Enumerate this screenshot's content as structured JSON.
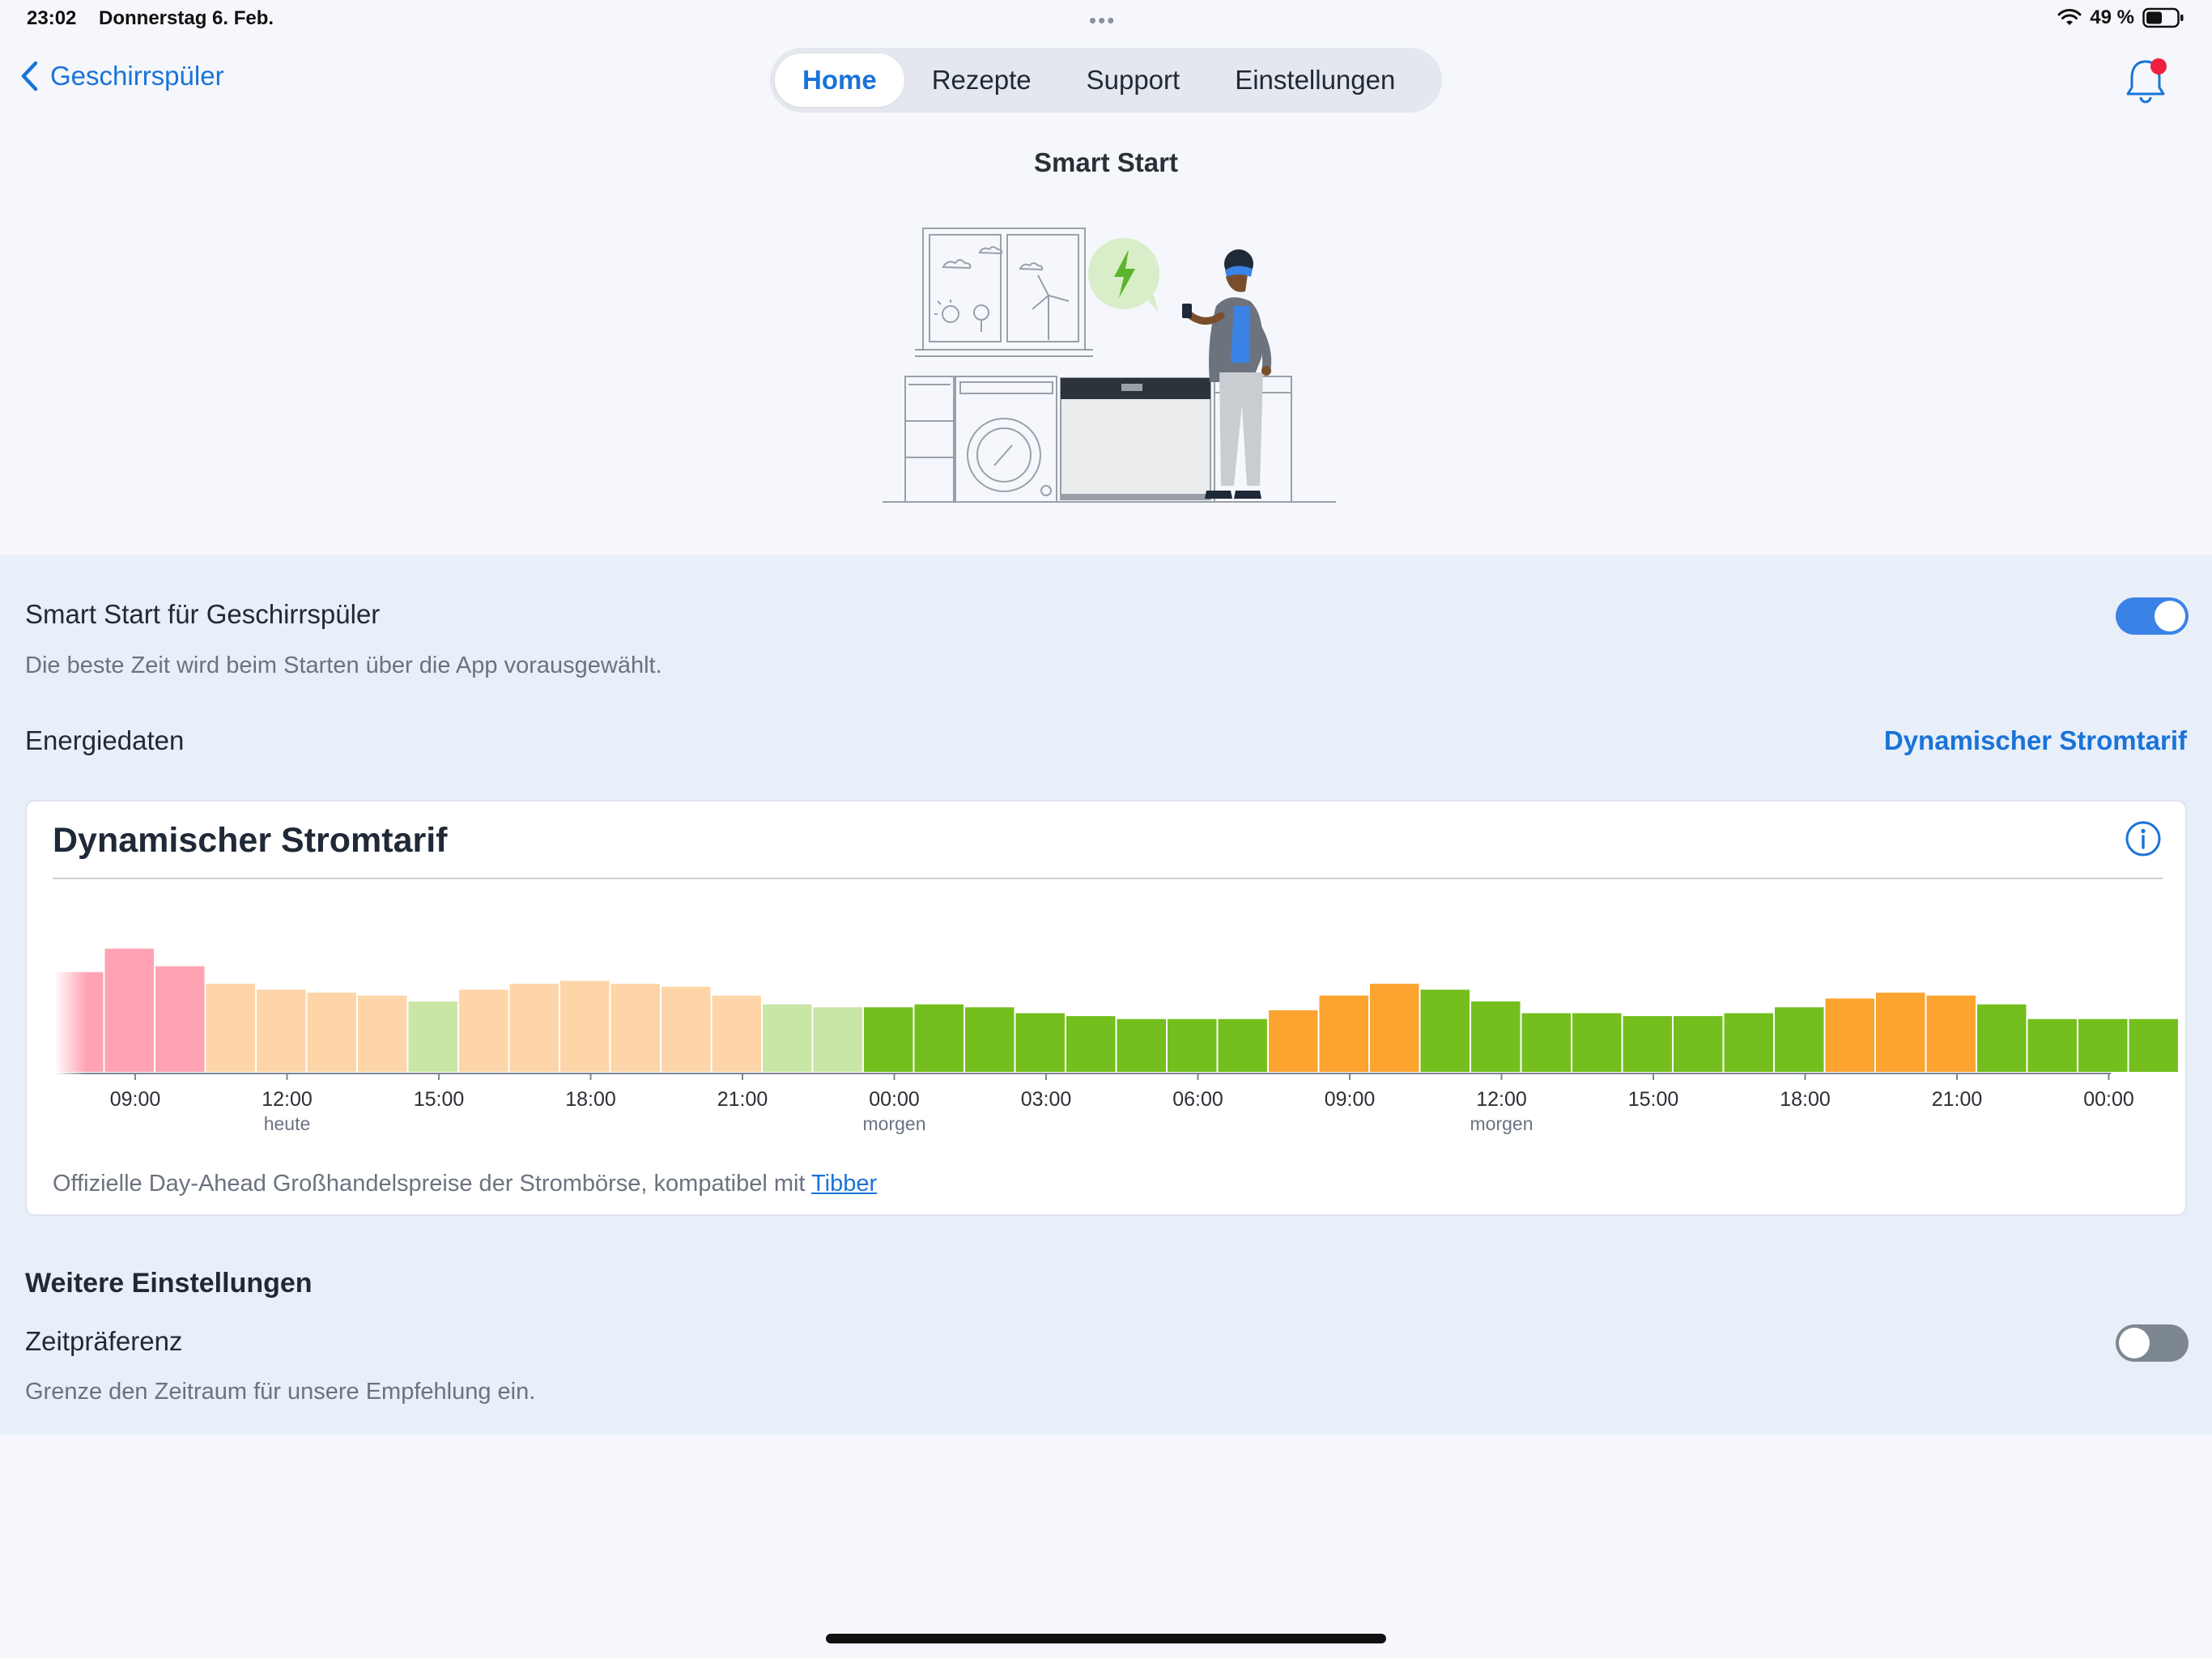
{
  "status_bar": {
    "time": "23:02",
    "date": "Donnerstag 6. Feb.",
    "battery": "49 %"
  },
  "nav": {
    "back_label": "Geschirrspüler",
    "tabs": [
      {
        "label": "Home",
        "active": true
      },
      {
        "label": "Rezepte",
        "active": false
      },
      {
        "label": "Support",
        "active": false
      },
      {
        "label": "Einstellungen",
        "active": false
      }
    ],
    "notification_badge": true
  },
  "page": {
    "title": "Smart Start"
  },
  "smart_start": {
    "title": "Smart Start für Geschirrspüler",
    "subtitle": "Die beste Zeit wird beim Starten über die App vorausgewählt.",
    "enabled": true
  },
  "energy": {
    "label": "Energiedaten",
    "link": "Dynamischer Stromtarif"
  },
  "card": {
    "title": "Dynamischer Stromtarif",
    "footer_text": "Offizielle Day-Ahead Großhandelspreise der Strombörse, kompatibel mit ",
    "footer_link": "Tibber"
  },
  "further": {
    "title": "Weitere Einstellungen",
    "time_pref_title": "Zeitpräferenz",
    "time_pref_subtitle": "Grenze den Zeitraum für unsere Empfehlung ein.",
    "time_pref_enabled": false
  },
  "colors": {
    "accent": "#1a73d9",
    "bar_pink": "#ffa3b4",
    "bar_peach": "#fed5a8",
    "bar_lightgreen": "#c9e6a6",
    "bar_green": "#74be1e",
    "bar_orange": "#fca330"
  },
  "chart_data": {
    "type": "bar",
    "title": "Dynamischer Stromtarif",
    "xlabel": "",
    "ylabel": "",
    "values": [
      17,
      21,
      18,
      15,
      14,
      13.5,
      13,
      12,
      14,
      15,
      15.5,
      15,
      14.5,
      13,
      11.5,
      11,
      11,
      11.5,
      11,
      10,
      9.5,
      9,
      9,
      9,
      10.5,
      13,
      15,
      14,
      12,
      10,
      10,
      9.5,
      9.5,
      10,
      11,
      12.5,
      13.5,
      13,
      11.5,
      9,
      9,
      9
    ],
    "color_class": [
      "pink",
      "pink",
      "pink",
      "peach",
      "peach",
      "peach",
      "peach",
      "lightgreen",
      "peach",
      "peach",
      "peach",
      "peach",
      "peach",
      "peach",
      "lightgreen",
      "lightgreen",
      "green",
      "green",
      "green",
      "green",
      "green",
      "green",
      "green",
      "green",
      "orange",
      "orange",
      "orange",
      "green",
      "green",
      "green",
      "green",
      "green",
      "green",
      "green",
      "green",
      "orange",
      "orange",
      "orange",
      "green",
      "green",
      "green",
      "green"
    ],
    "ticks": [
      {
        "label": "09:00",
        "sub": ""
      },
      {
        "label": "12:00",
        "sub": "heute"
      },
      {
        "label": "15:00",
        "sub": ""
      },
      {
        "label": "18:00",
        "sub": ""
      },
      {
        "label": "21:00",
        "sub": ""
      },
      {
        "label": "00:00",
        "sub": "morgen"
      },
      {
        "label": "03:00",
        "sub": ""
      },
      {
        "label": "06:00",
        "sub": ""
      },
      {
        "label": "09:00",
        "sub": ""
      },
      {
        "label": "12:00",
        "sub": "morgen"
      },
      {
        "label": "15:00",
        "sub": ""
      },
      {
        "label": "18:00",
        "sub": ""
      },
      {
        "label": "21:00",
        "sub": ""
      },
      {
        "label": "00:00",
        "sub": ""
      }
    ],
    "ylim": [
      0,
      24
    ],
    "grid": false,
    "legend": "none"
  }
}
